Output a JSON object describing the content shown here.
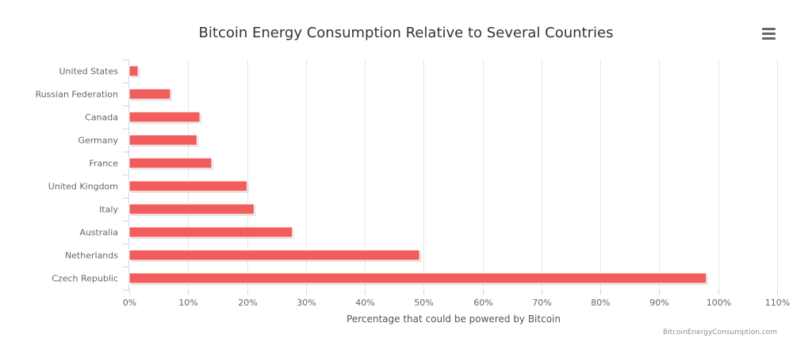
{
  "chart_data": {
    "type": "bar",
    "orientation": "horizontal",
    "title": "Bitcoin Energy Consumption Relative to Several Countries",
    "xlabel": "Percentage that could be powered by Bitcoin",
    "ylabel": "",
    "categories": [
      "United States",
      "Russian Federation",
      "Canada",
      "Germany",
      "France",
      "United Kingdom",
      "Italy",
      "Australia",
      "Netherlands",
      "Czech Republic"
    ],
    "values": [
      1.5,
      7,
      12,
      11.5,
      14,
      20,
      21.2,
      27.7,
      49.3,
      98
    ],
    "xlim": [
      0,
      110
    ],
    "ticks": [
      "0%",
      "10%",
      "20%",
      "30%",
      "40%",
      "50%",
      "60%",
      "70%",
      "80%",
      "90%",
      "100%",
      "110%"
    ],
    "bar_color": "#f15c5c",
    "grid": true,
    "credit": "BitcoinEnergyConsumption.com"
  },
  "menu": {
    "icon": "hamburger-menu-icon"
  }
}
